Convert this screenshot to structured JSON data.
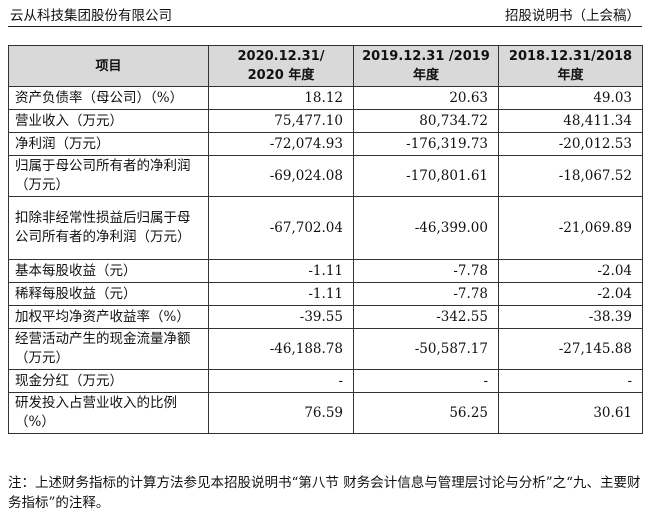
{
  "header": {
    "company": "云从科技集团股份有限公司",
    "doc_title": "招股说明书（上会稿）"
  },
  "table": {
    "columns": [
      {
        "line1": "项目",
        "line2": ""
      },
      {
        "line1": "2020.12.31/",
        "line2": "2020 年度"
      },
      {
        "line1": "2019.12.31 /2019",
        "line2": "年度"
      },
      {
        "line1": "2018.12.31/2018",
        "line2": "年度"
      }
    ],
    "rows": [
      {
        "label": "资产负债率（母公司）（%）",
        "values": [
          "18.12",
          "20.63",
          "49.03"
        ],
        "h": "h1"
      },
      {
        "label": "营业收入（万元）",
        "values": [
          "75,477.10",
          "80,734.72",
          "48,411.34"
        ],
        "h": "h1"
      },
      {
        "label": "净利润（万元）",
        "values": [
          "-72,074.93",
          "-176,319.73",
          "-20,012.53"
        ],
        "h": "h1"
      },
      {
        "label": "归属于母公司所有者的净利润（万元）",
        "values": [
          "-69,024.08",
          "-170,801.61",
          "-18,067.52"
        ],
        "h": "h2"
      },
      {
        "label": "扣除非经常性损益后归属于母公司所有者的净利润（万元）",
        "values": [
          "-67,702.04",
          "-46,399.00",
          "-21,069.89"
        ],
        "h": "h3"
      },
      {
        "label": "基本每股收益（元）",
        "values": [
          "-1.11",
          "-7.78",
          "-2.04"
        ],
        "h": "h1"
      },
      {
        "label": "稀释每股收益（元）",
        "values": [
          "-1.11",
          "-7.78",
          "-2.04"
        ],
        "h": "h1"
      },
      {
        "label": "加权平均净资产收益率（%）",
        "values": [
          "-39.55",
          "-342.55",
          "-38.39"
        ],
        "h": "h1"
      },
      {
        "label": "经营活动产生的现金流量净额（万元）",
        "values": [
          "-46,188.78",
          "-50,587.17",
          "-27,145.88"
        ],
        "h": "h2"
      },
      {
        "label": "现金分红（万元）",
        "values": [
          "-",
          "-",
          "-"
        ],
        "h": "h1"
      },
      {
        "label": "研发投入占营业收入的比例（%）",
        "values": [
          "76.59",
          "56.25",
          "30.61"
        ],
        "h": "h2"
      }
    ]
  },
  "note": "注：上述财务指标的计算方法参见本招股说明书“第八节 财务会计信息与管理层讨论与分析”之“九、主要财务指标”的注释。"
}
